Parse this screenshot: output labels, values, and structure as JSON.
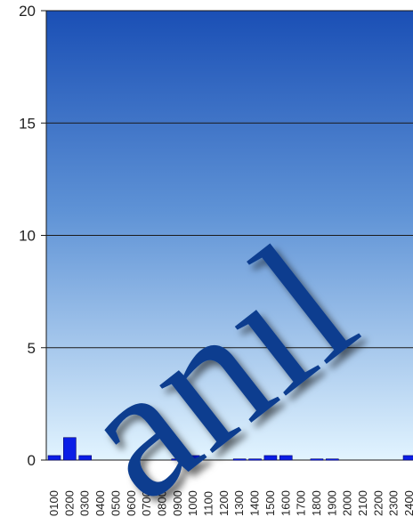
{
  "chart_data": {
    "type": "bar",
    "title": "",
    "xlabel": "",
    "ylabel": "",
    "ylim": [
      0,
      20
    ],
    "yticks": [
      0,
      5,
      10,
      15,
      20
    ],
    "grid": true,
    "categories": [
      "0100",
      "0200",
      "0300",
      "0400",
      "0500",
      "0600",
      "0700",
      "0800",
      "0900",
      "1000",
      "1100",
      "1200",
      "1300",
      "1400",
      "1500",
      "1600",
      "1700",
      "1800",
      "1900",
      "2000",
      "2100",
      "2200",
      "2300",
      "2400"
    ],
    "values": [
      0.2,
      1.0,
      0.2,
      0,
      0,
      0,
      0,
      0,
      0.05,
      0.2,
      0,
      0,
      0.05,
      0.05,
      0.2,
      0.2,
      0,
      0.05,
      0.05,
      0,
      0,
      0,
      0,
      0.2
    ]
  },
  "colors": {
    "bar": "#0a1ee6",
    "bar_edge": "#000066",
    "plot_top": "#1a4fb5",
    "plot_bottom": "#e2f4ff",
    "grid": "#1a1a1a",
    "watermark": "#0a3d8f"
  },
  "watermark": {
    "text": "anıl",
    "icon": "watermark-logo"
  }
}
